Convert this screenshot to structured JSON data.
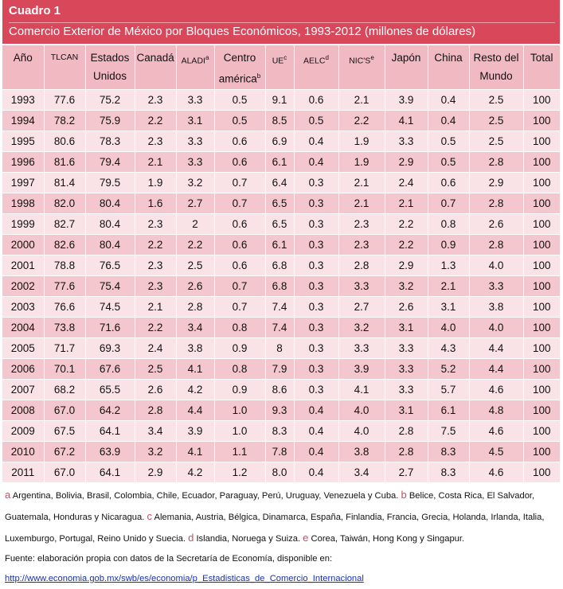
{
  "header": {
    "label": "Cuadro 1",
    "title": "Comercio Exterior de México por Bloques Económicos, 1993-2012 (millones de dólares)"
  },
  "table": {
    "columns": [
      {
        "text": "Año"
      },
      {
        "text": "TLCAN"
      },
      {
        "text": "Estados Unidos"
      },
      {
        "text": "Canadá"
      },
      {
        "text": "ALADI",
        "sup": "a"
      },
      {
        "text": "Centro américa",
        "sup": "b"
      },
      {
        "text": "UE",
        "sup": "c"
      },
      {
        "text": "AELC",
        "sup": "d"
      },
      {
        "text": "NIC'S",
        "sup": "e"
      },
      {
        "text": "Japón"
      },
      {
        "text": "China"
      },
      {
        "text": "Resto del Mundo"
      },
      {
        "text": "Total"
      }
    ],
    "rows": [
      [
        "1993",
        "77.6",
        "75.2",
        "2.3",
        "3.3",
        "0.5",
        "9.1",
        "0.6",
        "2.1",
        "3.9",
        "0.4",
        "2.5",
        "100"
      ],
      [
        "1994",
        "78.2",
        "75.9",
        "2.2",
        "3.1",
        "0.5",
        "8.5",
        "0.5",
        "2.2",
        "4.1",
        "0.4",
        "2.5",
        "100"
      ],
      [
        "1995",
        "80.6",
        "78.3",
        "2.3",
        "3.3",
        "0.6",
        "6.9",
        "0.4",
        "1.9",
        "3.3",
        "0.5",
        "2.5",
        "100"
      ],
      [
        "1996",
        "81.6",
        "79.4",
        "2.1",
        "3.3",
        "0.6",
        "6.1",
        "0.4",
        "1.9",
        "2.9",
        "0.5",
        "2.8",
        "100"
      ],
      [
        "1997",
        "81.4",
        "79.5",
        "1.9",
        "3.2",
        "0.7",
        "6.4",
        "0.3",
        "2.1",
        "2.4",
        "0.6",
        "2.9",
        "100"
      ],
      [
        "1998",
        "82.0",
        "80.4",
        "1.6",
        "2.7",
        "0.7",
        "6.5",
        "0.3",
        "2.1",
        "2.1",
        "0.7",
        "2.8",
        "100"
      ],
      [
        "1999",
        "82.7",
        "80.4",
        "2.3",
        "2",
        "0.6",
        "6.5",
        "0.3",
        "2.3",
        "2.2",
        "0.8",
        "2.6",
        "100"
      ],
      [
        "2000",
        "82.6",
        "80.4",
        "2.2",
        "2.2",
        "0.6",
        "6.1",
        "0.3",
        "2.3",
        "2.2",
        "0.9",
        "2.8",
        "100"
      ],
      [
        "2001",
        "78.8",
        "76.5",
        "2.3",
        "2.5",
        "0.6",
        "6.8",
        "0.3",
        "2.8",
        "2.9",
        "1.3",
        "4.0",
        "100"
      ],
      [
        "2002",
        "77.6",
        "75.4",
        "2.3",
        "2.6",
        "0.7",
        "6.8",
        "0.3",
        "3.3",
        "3.2",
        "2.1",
        "3.3",
        "100"
      ],
      [
        "2003",
        "76.6",
        "74.5",
        "2.1",
        "2.8",
        "0.7",
        "7.4",
        "0.3",
        "2.7",
        "2.6",
        "3.1",
        "3.8",
        "100"
      ],
      [
        "2004",
        "73.8",
        "71.6",
        "2.2",
        "3.4",
        "0.8",
        "7.4",
        "0.3",
        "3.2",
        "3.1",
        "4.0",
        "4.0",
        "100"
      ],
      [
        "2005",
        "71.7",
        "69.3",
        "2.4",
        "3.8",
        "0.9",
        "8",
        "0.3",
        "3.3",
        "3.3",
        "4.3",
        "4.4",
        "100"
      ],
      [
        "2006",
        "70.1",
        "67.6",
        "2.5",
        "4.1",
        "0.8",
        "7.9",
        "0.3",
        "3.9",
        "3.3",
        "5.2",
        "4.4",
        "100"
      ],
      [
        "2007",
        "68.2",
        "65.5",
        "2.6",
        "4.2",
        "0.9",
        "8.6",
        "0.3",
        "4.1",
        "3.3",
        "5.7",
        "4.6",
        "100"
      ],
      [
        "2008",
        "67.0",
        "64.2",
        "2.8",
        "4.4",
        "1.0",
        "9.3",
        "0.4",
        "4.0",
        "3.1",
        "6.1",
        "4.8",
        "100"
      ],
      [
        "2009",
        "67.5",
        "64.1",
        "3.4",
        "3.9",
        "1.0",
        "8.3",
        "0.4",
        "4.0",
        "2.8",
        "7.5",
        "4.6",
        "100"
      ],
      [
        "2010",
        "67.2",
        "63.9",
        "3.2",
        "4.1",
        "1.1",
        "7.8",
        "0.4",
        "3.8",
        "2.8",
        "8.3",
        "4.5",
        "100"
      ],
      [
        "2011",
        "67.0",
        "64.1",
        "2.9",
        "4.2",
        "1.2",
        "8.0",
        "0.4",
        "3.4",
        "2.7",
        "8.3",
        "4.6",
        "100"
      ]
    ]
  },
  "notes": [
    {
      "mark": "a",
      "text": "Argentina, Bolivia, Brasil, Colombia, Chile, Ecuador, Paraguay, Perú, Uruguay, Venezuela y Cuba."
    },
    {
      "mark": "b",
      "text": "Belice, Costa Rica, El Salvador, Guatemala, Honduras y Nicaragua."
    },
    {
      "mark": "c",
      "text": "Alemania, Austria, Bélgica, Dinamarca, España, Finlandia, Francia, Grecia, Holanda, Irlanda, Italia, Luxemburgo, Portugal, Reino Unido y Suecia."
    },
    {
      "mark": "d",
      "text": "Islandia, Noruega y Suiza."
    },
    {
      "mark": "e",
      "text": "Corea, Taiwán, Hong Kong y Singapur."
    }
  ],
  "source": "Fuente: elaboración propia con datos de la Secretaría de Economía, disponible en:",
  "url": "http://www.economia.gob.mx/swb/es/economia/p_Estadisticas_de_Comercio_Internacional"
}
